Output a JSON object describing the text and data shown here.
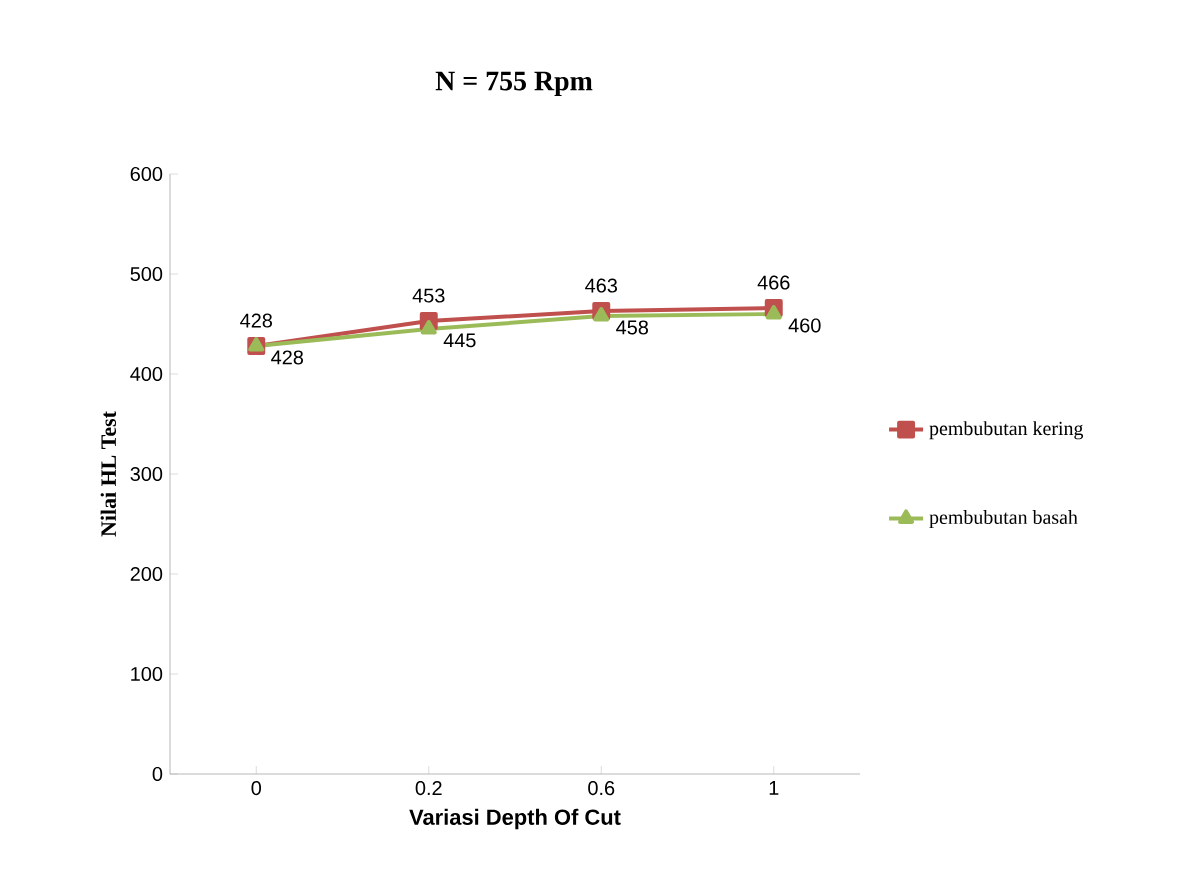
{
  "chart_data": {
    "type": "line",
    "title": "N = 755 Rpm",
    "xlabel": "Variasi Depth Of Cut",
    "ylabel": "Nilai HL Test",
    "categories": [
      "0",
      "0.2",
      "0.6",
      "1"
    ],
    "series": [
      {
        "name": "pembubutan kering",
        "color": "#c0504d",
        "marker": "square",
        "values": [
          428,
          453,
          463,
          466
        ]
      },
      {
        "name": "pembubutan basah",
        "color": "#9bbb59",
        "marker": "triangle",
        "values": [
          428,
          445,
          458,
          460
        ]
      }
    ],
    "ylim": [
      0,
      600
    ],
    "yticks": [
      0,
      100,
      200,
      300,
      400,
      500,
      600
    ],
    "grid": false,
    "legend": "right",
    "data_labels": true,
    "line_style": "solid"
  }
}
